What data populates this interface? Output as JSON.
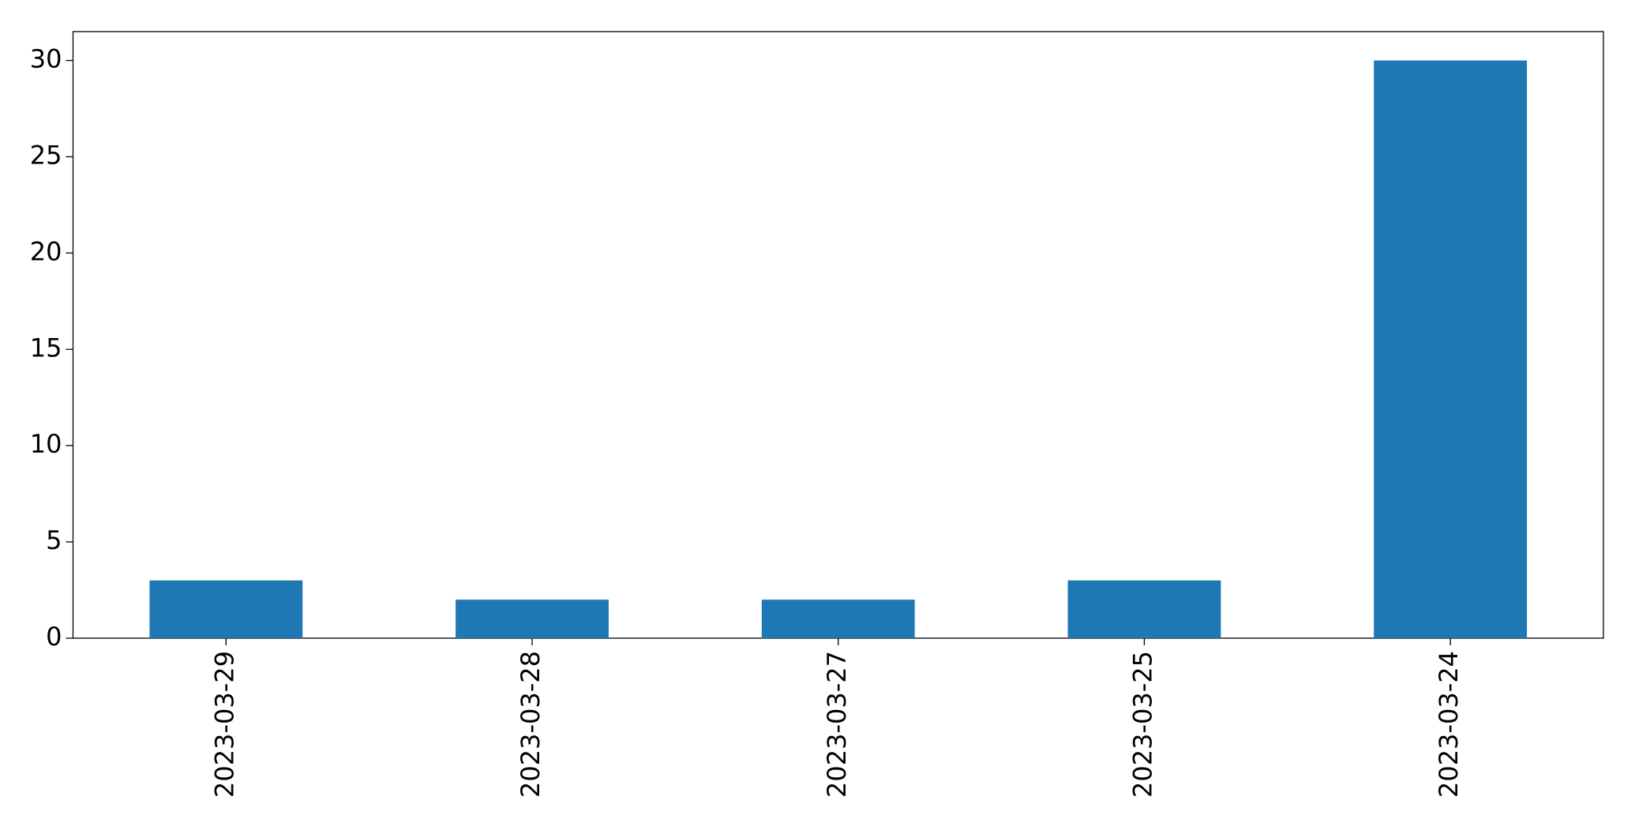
{
  "chart_data": {
    "type": "bar",
    "categories": [
      "2023-03-29",
      "2023-03-28",
      "2023-03-27",
      "2023-03-25",
      "2023-03-24"
    ],
    "values": [
      3,
      2,
      2,
      3,
      30
    ],
    "color": "#1f77b4",
    "ylim": [
      0,
      31.5
    ],
    "yticks": [
      0,
      5,
      10,
      15,
      20,
      25,
      30
    ],
    "grid": false
  }
}
